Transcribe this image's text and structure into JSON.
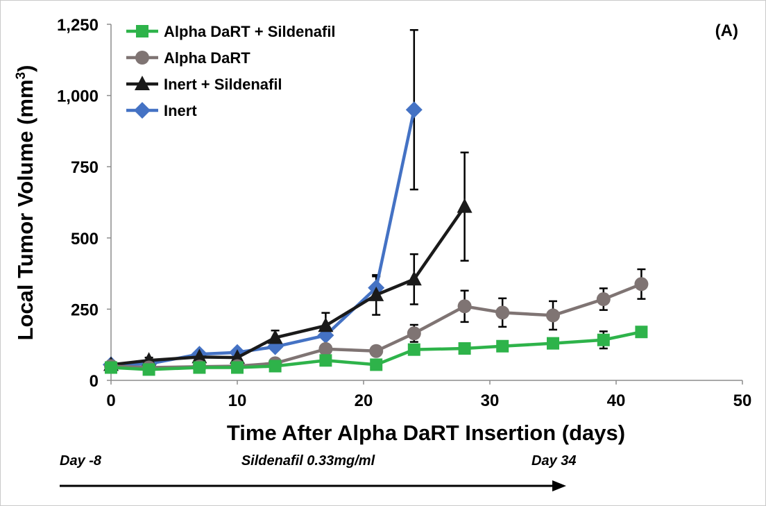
{
  "chart_data": {
    "type": "line",
    "title": "",
    "panel_label": "(A)",
    "xlabel": "Time After Alpha DaRT Insertion (days)",
    "ylabel": "Local Tumor Volume (mm",
    "ylabel_sup": "3",
    "ylabel_close": ")",
    "xlim": [
      0,
      50
    ],
    "ylim": [
      0,
      1250
    ],
    "xticks": [
      0,
      10,
      20,
      30,
      40,
      50
    ],
    "xtick_labels": [
      "0",
      "10",
      "20",
      "30",
      "40",
      "50"
    ],
    "yticks": [
      0,
      250,
      500,
      750,
      1000,
      1250
    ],
    "ytick_labels": [
      "0",
      "250",
      "500",
      "750",
      "1,000",
      "1,250"
    ],
    "grid": false,
    "legend_position": "top-left",
    "series": [
      {
        "name": "Alpha DaRT + Sildenafil",
        "color": "#2eb34a",
        "marker": "square",
        "x": [
          0,
          3,
          7,
          10,
          13,
          17,
          21,
          24,
          28,
          31,
          35,
          39,
          42
        ],
        "y": [
          45,
          38,
          45,
          45,
          50,
          70,
          55,
          108,
          112,
          120,
          130,
          142,
          170
        ],
        "err": [
          0,
          0,
          0,
          0,
          0,
          0,
          0,
          0,
          0,
          0,
          0,
          30,
          0
        ]
      },
      {
        "name": "Alpha DaRT",
        "color": "#7f7473",
        "marker": "circle",
        "x": [
          0,
          3,
          7,
          10,
          13,
          17,
          21,
          24,
          28,
          31,
          35,
          39,
          42
        ],
        "y": [
          50,
          45,
          48,
          50,
          60,
          110,
          103,
          165,
          260,
          238,
          228,
          285,
          338
        ],
        "err": [
          0,
          0,
          0,
          0,
          0,
          0,
          0,
          30,
          55,
          50,
          50,
          38,
          52
        ]
      },
      {
        "name": "Inert + Sildenafil",
        "color": "#1a1a1a",
        "marker": "triangle",
        "x": [
          0,
          3,
          7,
          10,
          13,
          17,
          21,
          24,
          28
        ],
        "y": [
          55,
          70,
          82,
          80,
          150,
          192,
          300,
          355,
          610
        ],
        "err": [
          0,
          10,
          0,
          0,
          25,
          45,
          70,
          88,
          190
        ]
      },
      {
        "name": "Inert",
        "color": "#4472c4",
        "marker": "diamond",
        "x": [
          0,
          3,
          7,
          10,
          13,
          17,
          21,
          24
        ],
        "y": [
          55,
          58,
          92,
          98,
          118,
          158,
          325,
          950
        ],
        "err": [
          0,
          0,
          0,
          0,
          0,
          0,
          40,
          280
        ]
      }
    ]
  },
  "annotation": {
    "start_label": "Day -8",
    "drug_label": "Sildenafil 0.33mg/ml",
    "end_label": "Day 34"
  }
}
